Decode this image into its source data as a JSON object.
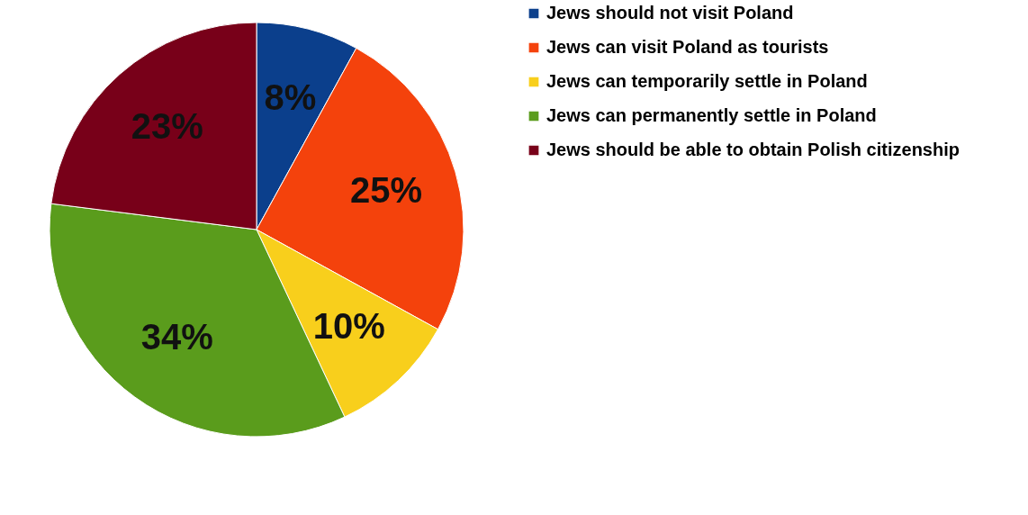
{
  "chart_data": {
    "type": "pie",
    "categories": [
      "Jews should not visit Poland",
      "Jews can visit Poland as tourists",
      "Jews can temporarily settle in Poland",
      "Jews can permanently settle in Poland",
      "Jews should be able to obtain Polish citizenship"
    ],
    "values": [
      8,
      25,
      10,
      34,
      23
    ],
    "value_labels": [
      "8%",
      "25%",
      "10%",
      "34%",
      "23%"
    ],
    "colors": [
      "#0b3f8c",
      "#f4420c",
      "#f8cf1c",
      "#5a9c1c",
      "#780019"
    ],
    "legend": "right"
  }
}
